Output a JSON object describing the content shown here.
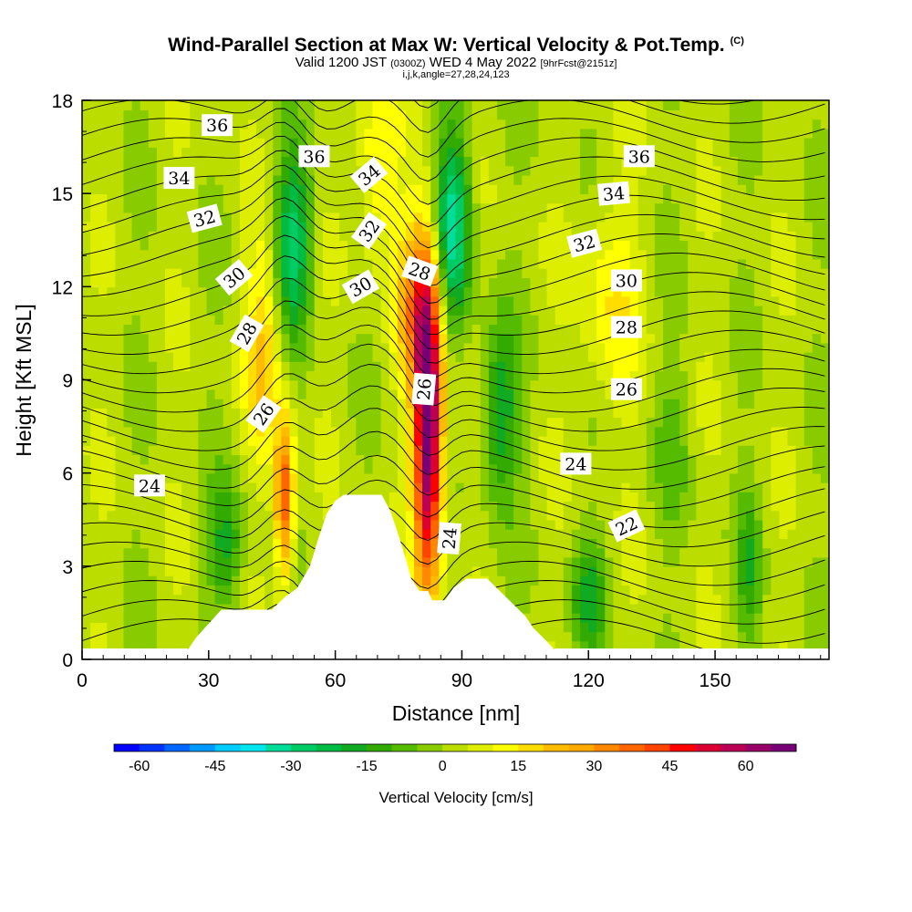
{
  "header": {
    "title": "Wind-Parallel Section at Max W: Vertical Velocity & Pot.Temp.",
    "copyright": "(C)",
    "valid_prefix": "Valid 1200 JST",
    "valid_utc": "(0300Z)",
    "valid_date": "WED 4 May 2022",
    "forecast": "[9hrFcst@2151z]",
    "indices": "i,j,k,angle=27,28,24,123"
  },
  "chart_data": {
    "type": "heatmap",
    "xlabel": "Distance [nm]",
    "ylabel": "Height [Kft MSL]",
    "xlim": [
      0,
      177
    ],
    "ylim": [
      0,
      18
    ],
    "xticks": [
      "0",
      "30",
      "60",
      "90",
      "120",
      "150"
    ],
    "yticks": [
      "0",
      "3",
      "6",
      "9",
      "12",
      "15",
      "18"
    ],
    "colorbar": {
      "label": "Vertical Velocity [cm/s]",
      "tick_labels": [
        "-60",
        "-45",
        "-30",
        "-15",
        "0",
        "15",
        "30",
        "45",
        "60"
      ],
      "bins": [
        -65,
        -60,
        -55,
        -50,
        -45,
        -40,
        -35,
        -30,
        -25,
        -20,
        -15,
        -10,
        -5,
        0,
        5,
        10,
        15,
        20,
        25,
        30,
        35,
        40,
        45,
        50,
        55,
        60,
        65,
        70
      ],
      "colors": [
        "#0000ff",
        "#0033ff",
        "#0066ff",
        "#0099ff",
        "#00ccff",
        "#00e5ee",
        "#00dd99",
        "#00cc66",
        "#00bb44",
        "#11aa22",
        "#33aa00",
        "#55bb00",
        "#88cc00",
        "#bbdd00",
        "#ddee00",
        "#ffff00",
        "#ffdd00",
        "#ffbb00",
        "#ffaa00",
        "#ff8800",
        "#ff6600",
        "#ff4400",
        "#ff0000",
        "#dd0033",
        "#bb0055",
        "#990066",
        "#770077"
      ]
    },
    "terrain_kft": [
      [
        25,
        0.3
      ],
      [
        27,
        0.7
      ],
      [
        29,
        1.0
      ],
      [
        31,
        1.3
      ],
      [
        33,
        1.6
      ],
      [
        45,
        1.6
      ],
      [
        48,
        2.0
      ],
      [
        51,
        2.3
      ],
      [
        54,
        3.0
      ],
      [
        56,
        3.9
      ],
      [
        58,
        4.7
      ],
      [
        60,
        5.1
      ],
      [
        62,
        5.3
      ],
      [
        71,
        5.3
      ],
      [
        73,
        4.8
      ],
      [
        75,
        4.0
      ],
      [
        77,
        3.1
      ],
      [
        78,
        2.6
      ],
      [
        80,
        2.2
      ],
      [
        82,
        2.2
      ],
      [
        83,
        1.9
      ],
      [
        86,
        1.9
      ],
      [
        88,
        2.3
      ],
      [
        91,
        2.6
      ],
      [
        96,
        2.6
      ],
      [
        99,
        2.2
      ],
      [
        102,
        1.8
      ],
      [
        105,
        1.4
      ],
      [
        107,
        1.0
      ],
      [
        110,
        0.6
      ],
      [
        112,
        0.3
      ]
    ],
    "updrafts": [
      {
        "x": 82,
        "z": 7.2,
        "sx": 2.3,
        "sz": 3.4,
        "w": 70
      },
      {
        "x": 80,
        "z": 11.5,
        "sx": 3.5,
        "sz": 2.0,
        "w": 30
      },
      {
        "x": 70,
        "z": 16.0,
        "sx": 3.5,
        "sz": 2.2,
        "w": 15
      },
      {
        "x": 48,
        "z": 5.2,
        "sx": 1.6,
        "sz": 1.8,
        "w": 40
      },
      {
        "x": 43,
        "z": 10.0,
        "sx": 3.0,
        "sz": 2.5,
        "w": 18
      },
      {
        "x": 125,
        "z": 11.5,
        "sx": 5.0,
        "sz": 2.5,
        "w": 12
      }
    ],
    "downdrafts": [
      {
        "x": 50,
        "z": 13.5,
        "sx": 3.0,
        "sz": 2.0,
        "w": -30
      },
      {
        "x": 88,
        "z": 14.0,
        "sx": 3.0,
        "sz": 2.2,
        "w": -35
      },
      {
        "x": 99,
        "z": 8.0,
        "sx": 3.0,
        "sz": 2.0,
        "w": -22
      },
      {
        "x": 34,
        "z": 3.7,
        "sx": 3.0,
        "sz": 1.4,
        "w": -18
      },
      {
        "x": 120,
        "z": 2.0,
        "sx": 3.0,
        "sz": 1.3,
        "w": -18
      },
      {
        "x": 158,
        "z": 3.0,
        "sx": 2.0,
        "sz": 1.8,
        "w": -14
      },
      {
        "x": 140,
        "z": 7.0,
        "sx": 3.0,
        "sz": 2.0,
        "w": -8
      }
    ],
    "isentropes": [
      {
        "label": "24",
        "x": 16,
        "z": 5.6,
        "rot": 0
      },
      {
        "label": "26",
        "x": 43,
        "z": 7.9,
        "rot": -55
      },
      {
        "label": "28",
        "x": 39,
        "z": 10.5,
        "rot": -60
      },
      {
        "label": "30",
        "x": 36,
        "z": 12.3,
        "rot": -40
      },
      {
        "label": "32",
        "x": 29,
        "z": 14.2,
        "rot": -15
      },
      {
        "label": "34",
        "x": 23,
        "z": 15.5,
        "rot": 0
      },
      {
        "label": "36",
        "x": 32,
        "z": 17.2,
        "rot": 0
      },
      {
        "label": "36",
        "x": 55,
        "z": 16.2,
        "rot": 0
      },
      {
        "label": "34",
        "x": 68,
        "z": 15.6,
        "rot": -40
      },
      {
        "label": "32",
        "x": 68,
        "z": 13.8,
        "rot": -55
      },
      {
        "label": "30",
        "x": 66,
        "z": 12.0,
        "rot": -30
      },
      {
        "label": "28",
        "x": 80,
        "z": 12.5,
        "rot": 20
      },
      {
        "label": "26",
        "x": 81,
        "z": 8.7,
        "rot": -85
      },
      {
        "label": "24",
        "x": 87,
        "z": 3.9,
        "rot": -85
      },
      {
        "label": "36",
        "x": 132,
        "z": 16.2,
        "rot": 0
      },
      {
        "label": "34",
        "x": 126,
        "z": 15.0,
        "rot": -5
      },
      {
        "label": "32",
        "x": 119,
        "z": 13.4,
        "rot": -15
      },
      {
        "label": "30",
        "x": 129,
        "z": 12.2,
        "rot": 0
      },
      {
        "label": "28",
        "x": 129,
        "z": 10.7,
        "rot": 0
      },
      {
        "label": "26",
        "x": 129,
        "z": 8.7,
        "rot": 0
      },
      {
        "label": "24",
        "x": 117,
        "z": 6.3,
        "rot": 0
      },
      {
        "label": "22",
        "x": 129,
        "z": 4.3,
        "rot": -25
      }
    ]
  }
}
